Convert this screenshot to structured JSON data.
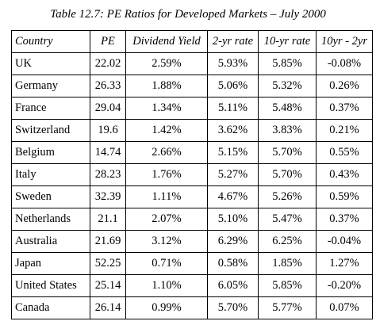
{
  "title": "Table 12.7: PE Ratios for Developed Markets – July 2000",
  "table": {
    "header": [
      "Country",
      "PE",
      "Dividend Yield",
      "2-yr rate",
      "10-yr rate",
      "10yr - 2yr"
    ],
    "rows": [
      [
        "UK",
        "22.02",
        "2.59%",
        "5.93%",
        "5.85%",
        "-0.08%"
      ],
      [
        "Germany",
        "26.33",
        "1.88%",
        "5.06%",
        "5.32%",
        "0.26%"
      ],
      [
        "France",
        "29.04",
        "1.34%",
        "5.11%",
        "5.48%",
        "0.37%"
      ],
      [
        "Switzerland",
        "19.6",
        "1.42%",
        "3.62%",
        "3.83%",
        "0.21%"
      ],
      [
        "Belgium",
        "14.74",
        "2.66%",
        "5.15%",
        "5.70%",
        "0.55%"
      ],
      [
        "Italy",
        "28.23",
        "1.76%",
        "5.27%",
        "5.70%",
        "0.43%"
      ],
      [
        "Sweden",
        "32.39",
        "1.11%",
        "4.67%",
        "5.26%",
        "0.59%"
      ],
      [
        "Netherlands",
        "21.1",
        "2.07%",
        "5.10%",
        "5.47%",
        "0.37%"
      ],
      [
        "Australia",
        "21.69",
        "3.12%",
        "6.29%",
        "6.25%",
        "-0.04%"
      ],
      [
        "Japan",
        "52.25",
        "0.71%",
        "0.58%",
        "1.85%",
        "1.27%"
      ],
      [
        "United States",
        "25.14",
        "1.10%",
        "6.05%",
        "5.85%",
        "-0.20%"
      ],
      [
        "Canada",
        "26.14",
        "0.99%",
        "5.70%",
        "5.77%",
        "0.07%"
      ]
    ]
  }
}
